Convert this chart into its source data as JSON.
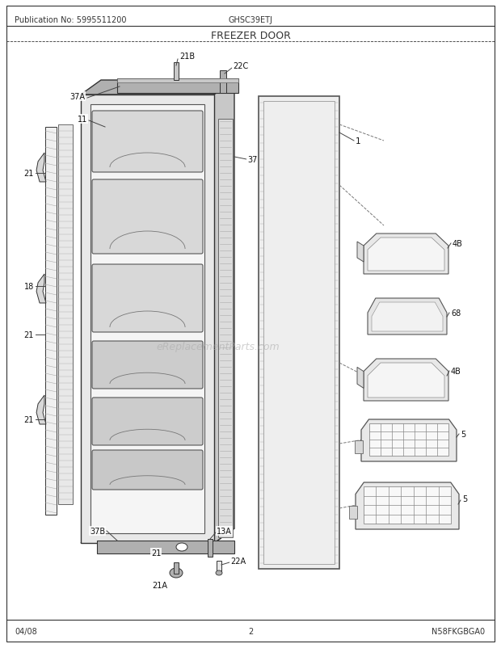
{
  "title": "FREEZER DOOR",
  "pub_no": "Publication No: 5995511200",
  "model": "GHSC39ETJ",
  "page": "2",
  "date": "04/08",
  "watermark": "eReplacementParts.com",
  "bottom_right_code": "N58FKGBGA0",
  "bg_color": "#ffffff",
  "text_color": "#000000",
  "line_color": "#333333",
  "gray1": "#c8c8c8",
  "gray2": "#b0b0b0",
  "gray3": "#e8e8e8",
  "gray4": "#d0d0d0",
  "gray5": "#a8a8a8"
}
